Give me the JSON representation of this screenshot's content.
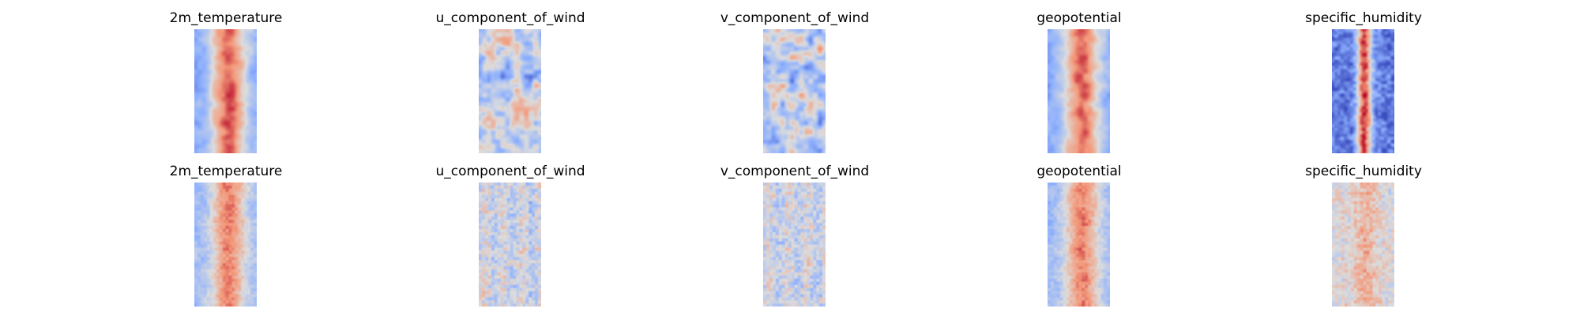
{
  "colormap": "coolwarm",
  "rows": [
    {
      "panels": [
        {
          "title": "2m_temperature",
          "pattern": "band_smooth"
        },
        {
          "title": "u_component_of_wind",
          "pattern": "wind_smooth"
        },
        {
          "title": "v_component_of_wind",
          "pattern": "wind_smooth"
        },
        {
          "title": "geopotential",
          "pattern": "band_smooth"
        },
        {
          "title": "specific_humidity",
          "pattern": "humidity_band"
        }
      ]
    },
    {
      "panels": [
        {
          "title": "2m_temperature",
          "pattern": "band_blocky"
        },
        {
          "title": "u_component_of_wind",
          "pattern": "noise_blocky"
        },
        {
          "title": "v_component_of_wind",
          "pattern": "noise_blocky"
        },
        {
          "title": "geopotential",
          "pattern": "band_blocky"
        },
        {
          "title": "specific_humidity",
          "pattern": "humidity_blocky"
        }
      ]
    }
  ]
}
